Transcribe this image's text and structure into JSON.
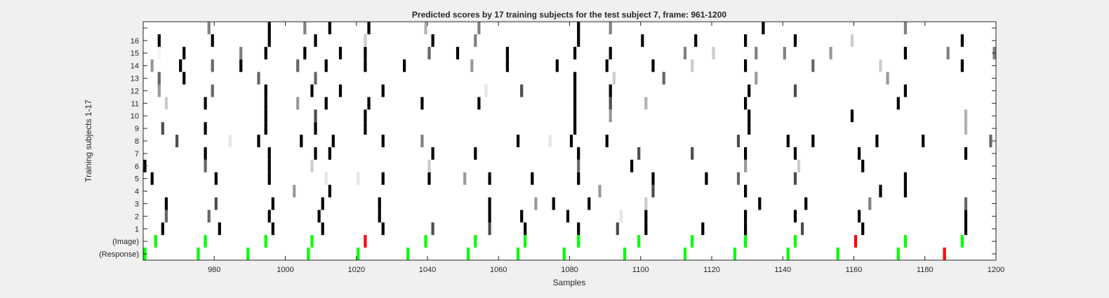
{
  "chart_data": {
    "type": "heatmap",
    "title": "Predicted scores by 17 training subjects for the test subject 7, frame: 961-1200",
    "xlabel": "Samples",
    "ylabel": "Training subjects 1-17",
    "xlim": [
      961,
      1200
    ],
    "x_ticks": [
      980,
      1000,
      1020,
      1040,
      1060,
      1080,
      1100,
      1120,
      1140,
      1160,
      1180,
      1200
    ],
    "row_labels": [
      "(Response)",
      "(Image)",
      "1",
      "2",
      "3",
      "4",
      "5",
      "6",
      "7",
      "8",
      "9",
      "10",
      "11",
      "12",
      "13",
      "14",
      "15",
      "16",
      ""
    ],
    "grid": false,
    "colors": {
      "background": "#ffffff",
      "mark_dark": "#000000",
      "correct": "#00ff00",
      "error": "#ff0000"
    },
    "response_marks": [
      {
        "x": 961,
        "color": "#00ff00"
      },
      {
        "x": 976,
        "color": "#00ff00"
      },
      {
        "x": 990,
        "color": "#00ff00"
      },
      {
        "x": 1007,
        "color": "#00ff00"
      },
      {
        "x": 1021,
        "color": "#00ff00"
      },
      {
        "x": 1035,
        "color": "#00ff00"
      },
      {
        "x": 1052,
        "color": "#00ff00"
      },
      {
        "x": 1066,
        "color": "#00ff00"
      },
      {
        "x": 1079,
        "color": "#00ff00"
      },
      {
        "x": 1096,
        "color": "#00ff00"
      },
      {
        "x": 1113,
        "color": "#00ff00"
      },
      {
        "x": 1127,
        "color": "#00ff00"
      },
      {
        "x": 1142,
        "color": "#00ff00"
      },
      {
        "x": 1156,
        "color": "#00ff00"
      },
      {
        "x": 1173,
        "color": "#00ff00"
      },
      {
        "x": 1186,
        "color": "#ff0000"
      }
    ],
    "image_marks": [
      {
        "x": 964,
        "color": "#00ff00"
      },
      {
        "x": 978,
        "color": "#00ff00"
      },
      {
        "x": 995,
        "color": "#00ff00"
      },
      {
        "x": 1008,
        "color": "#00ff00"
      },
      {
        "x": 1023,
        "color": "#ff0000"
      },
      {
        "x": 1040,
        "color": "#00ff00"
      },
      {
        "x": 1054,
        "color": "#00ff00"
      },
      {
        "x": 1068,
        "color": "#00ff00"
      },
      {
        "x": 1083,
        "color": "#00ff00"
      },
      {
        "x": 1100,
        "color": "#00ff00"
      },
      {
        "x": 1115,
        "color": "#00ff00"
      },
      {
        "x": 1130,
        "color": "#00ff00"
      },
      {
        "x": 1144,
        "color": "#00ff00"
      },
      {
        "x": 1161,
        "color": "#ff0000"
      },
      {
        "x": 1175,
        "color": "#00ff00"
      },
      {
        "x": 1191,
        "color": "#00ff00"
      }
    ],
    "subject_scores": [
      {
        "subject": 1,
        "marks": [
          [
            966,
            0
          ],
          [
            982,
            0
          ],
          [
            997,
            0
          ],
          [
            1011,
            0
          ],
          [
            1028,
            0
          ],
          [
            1042,
            0.3
          ],
          [
            1058,
            0.3
          ],
          [
            1068,
            0
          ],
          [
            1083,
            0
          ],
          [
            1094,
            0.3
          ],
          [
            1102,
            0
          ],
          [
            1118,
            0
          ],
          [
            1130,
            0
          ],
          [
            1146,
            0.3
          ],
          [
            1163,
            0
          ],
          [
            1192,
            0
          ]
        ]
      },
      {
        "subject": 2,
        "marks": [
          [
            967,
            0.4
          ],
          [
            979,
            0.4
          ],
          [
            996,
            0
          ],
          [
            1010,
            0
          ],
          [
            1027,
            0
          ],
          [
            1058,
            0
          ],
          [
            1067,
            0
          ],
          [
            1080,
            0
          ],
          [
            1095,
            0.9
          ],
          [
            1102,
            0
          ],
          [
            1130,
            0
          ],
          [
            1144,
            0
          ],
          [
            1162,
            0
          ],
          [
            1192,
            0
          ]
        ]
      },
      {
        "subject": 3,
        "marks": [
          [
            967,
            0
          ],
          [
            981,
            0.3
          ],
          [
            997,
            0
          ],
          [
            1011,
            0
          ],
          [
            1027,
            0
          ],
          [
            1058,
            0
          ],
          [
            1071,
            0.6
          ],
          [
            1076,
            0
          ],
          [
            1086,
            0
          ],
          [
            1102,
            0.8
          ],
          [
            1134,
            0
          ],
          [
            1147,
            0
          ],
          [
            1165,
            0.5
          ],
          [
            1192,
            0.4
          ]
        ]
      },
      {
        "subject": 4,
        "marks": [
          [
            1003,
            0.6
          ],
          [
            1013,
            0
          ],
          [
            1089,
            0.6
          ],
          [
            1104,
            0.3
          ],
          [
            1130,
            0
          ],
          [
            1168,
            0
          ],
          [
            1175,
            0
          ]
        ]
      },
      {
        "subject": 5,
        "marks": [
          [
            963,
            0
          ],
          [
            981,
            0
          ],
          [
            996,
            0
          ],
          [
            1012,
            0.9
          ],
          [
            1021,
            0.9
          ],
          [
            1028,
            0
          ],
          [
            1041,
            0
          ],
          [
            1051,
            0.6
          ],
          [
            1058,
            0
          ],
          [
            1070,
            0
          ],
          [
            1083,
            0
          ],
          [
            1104,
            0
          ],
          [
            1119,
            0
          ],
          [
            1128,
            0.4
          ],
          [
            1144,
            0.3
          ],
          [
            1175,
            0
          ]
        ]
      },
      {
        "subject": 6,
        "marks": [
          [
            961,
            0
          ],
          [
            978,
            0.4
          ],
          [
            996,
            0
          ],
          [
            1008,
            0.8
          ],
          [
            1041,
            0.8
          ],
          [
            1083,
            0.4
          ],
          [
            1098,
            0
          ],
          [
            1130,
            0.6
          ],
          [
            1145,
            0.8
          ],
          [
            1163,
            0
          ]
        ]
      },
      {
        "subject": 7,
        "marks": [
          [
            978,
            0
          ],
          [
            996,
            0
          ],
          [
            1009,
            0
          ],
          [
            1013,
            0
          ],
          [
            1042,
            0
          ],
          [
            1054,
            0
          ],
          [
            1083,
            0
          ],
          [
            1100,
            0.3
          ],
          [
            1115,
            0.3
          ],
          [
            1130,
            0
          ],
          [
            1144,
            0
          ],
          [
            1162,
            0
          ],
          [
            1192,
            0
          ]
        ]
      },
      {
        "subject": 8,
        "marks": [
          [
            970,
            0.3
          ],
          [
            985,
            0.9
          ],
          [
            993,
            0
          ],
          [
            1005,
            0
          ],
          [
            1014,
            0
          ],
          [
            1028,
            0
          ],
          [
            1039,
            0.5
          ],
          [
            1066,
            0
          ],
          [
            1075,
            0.9
          ],
          [
            1081,
            0
          ],
          [
            1091,
            0
          ],
          [
            1128,
            0.3
          ],
          [
            1142,
            0
          ],
          [
            1149,
            0
          ],
          [
            1167,
            0
          ],
          [
            1180,
            0
          ],
          [
            1199,
            0.4
          ]
        ]
      },
      {
        "subject": 9,
        "marks": [
          [
            966,
            0.3
          ],
          [
            978,
            0
          ],
          [
            995,
            0
          ],
          [
            1009,
            0
          ],
          [
            1023,
            0
          ],
          [
            1082,
            0
          ],
          [
            1131,
            0
          ],
          [
            1192,
            0.7
          ]
        ]
      },
      {
        "subject": 10,
        "marks": [
          [
            995,
            0
          ],
          [
            1009,
            0.3
          ],
          [
            1023,
            0
          ],
          [
            1082,
            0
          ],
          [
            1092,
            0.6
          ],
          [
            1131,
            0
          ],
          [
            1160,
            0
          ],
          [
            1192,
            0.7
          ]
        ]
      },
      {
        "subject": 11,
        "marks": [
          [
            967,
            0.8
          ],
          [
            978,
            0
          ],
          [
            995,
            0
          ],
          [
            1004,
            0.6
          ],
          [
            1012,
            0
          ],
          [
            1024,
            0
          ],
          [
            1039,
            0
          ],
          [
            1055,
            0
          ],
          [
            1082,
            0
          ],
          [
            1092,
            0.3
          ],
          [
            1102,
            0.7
          ],
          [
            1130,
            0
          ],
          [
            1173,
            0
          ]
        ]
      },
      {
        "subject": 12,
        "marks": [
          [
            965,
            0.6
          ],
          [
            980,
            0.4
          ],
          [
            995,
            0
          ],
          [
            1008,
            0
          ],
          [
            1016,
            0
          ],
          [
            1028,
            0
          ],
          [
            1057,
            0.9
          ],
          [
            1067,
            0.3
          ],
          [
            1082,
            0
          ],
          [
            1092,
            0
          ],
          [
            1131,
            0
          ],
          [
            1144,
            0.3
          ],
          [
            1175,
            0
          ]
        ]
      },
      {
        "subject": 13,
        "marks": [
          [
            965,
            0.4
          ],
          [
            972,
            0
          ],
          [
            993,
            0.4
          ],
          [
            1009,
            0.4
          ],
          [
            1082,
            0
          ],
          [
            1093,
            0.8
          ],
          [
            1107,
            0.4
          ],
          [
            1133,
            0.6
          ],
          [
            1170,
            0.6
          ]
        ]
      },
      {
        "subject": 14,
        "marks": [
          [
            963,
            0.6
          ],
          [
            971,
            0
          ],
          [
            980,
            0.4
          ],
          [
            988,
            0
          ],
          [
            1004,
            0.4
          ],
          [
            1012,
            0
          ],
          [
            1023,
            0
          ],
          [
            1034,
            0
          ],
          [
            1053,
            0.6
          ],
          [
            1063,
            0
          ],
          [
            1077,
            0
          ],
          [
            1091,
            0
          ],
          [
            1104,
            0
          ],
          [
            1115,
            0.8
          ],
          [
            1130,
            0
          ],
          [
            1149,
            0.4
          ],
          [
            1168,
            0.8
          ],
          [
            1191,
            0
          ]
        ]
      },
      {
        "subject": 15,
        "marks": [
          [
            965,
            0.95
          ],
          [
            972,
            0
          ],
          [
            988,
            0.5
          ],
          [
            995,
            0
          ],
          [
            1006,
            0
          ],
          [
            1016,
            0
          ],
          [
            1023,
            0
          ],
          [
            1041,
            0.4
          ],
          [
            1049,
            0
          ],
          [
            1063,
            0
          ],
          [
            1082,
            0
          ],
          [
            1092,
            0
          ],
          [
            1113,
            0.5
          ],
          [
            1121,
            0.8
          ],
          [
            1133,
            0.5
          ],
          [
            1141,
            0.5
          ],
          [
            1154,
            0.6
          ],
          [
            1175,
            0
          ],
          [
            1187,
            0.5
          ],
          [
            1200,
            0.5
          ]
        ]
      },
      {
        "subject": 16,
        "marks": [
          [
            965,
            0
          ],
          [
            980,
            0
          ],
          [
            996,
            0
          ],
          [
            1009,
            0
          ],
          [
            1023,
            0.8
          ],
          [
            1042,
            0
          ],
          [
            1054,
            0.5
          ],
          [
            1083,
            0
          ],
          [
            1101,
            0
          ],
          [
            1116,
            0
          ],
          [
            1130,
            0
          ],
          [
            1144,
            0
          ],
          [
            1160,
            0.8
          ],
          [
            1191,
            0
          ]
        ]
      },
      {
        "subject": 17,
        "marks": [
          [
            979,
            0.5
          ],
          [
            996,
            0
          ],
          [
            1006,
            0.5
          ],
          [
            1013,
            0
          ],
          [
            1024,
            0
          ],
          [
            1040,
            0.7
          ],
          [
            1055,
            0.5
          ],
          [
            1083,
            0
          ],
          [
            1092,
            0.5
          ],
          [
            1135,
            0
          ],
          [
            1175,
            0.5
          ]
        ]
      }
    ]
  }
}
